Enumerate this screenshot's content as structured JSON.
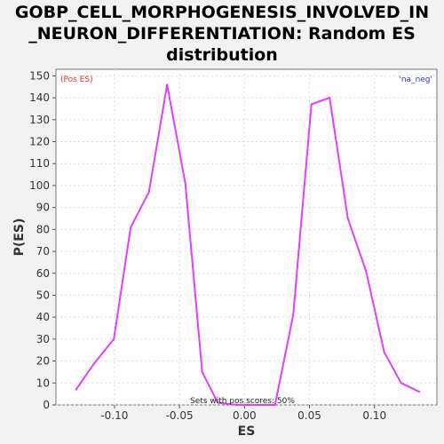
{
  "chart_data": {
    "type": "line",
    "title_lines": [
      "GOBP_CELL_MORPHOGENESIS_INVOLVED_IN",
      "_NEURON_DIFFERENTIATION: Random ES",
      "distribution"
    ],
    "xlabel": "ES",
    "ylabel": "P(ES)",
    "xlim": [
      -0.145,
      0.148
    ],
    "ylim": [
      0,
      153
    ],
    "x_ticks": [
      -0.1,
      -0.05,
      0.0,
      0.05,
      0.1
    ],
    "x_tick_labels": [
      "-0.10",
      "-0.05",
      "0.00",
      "0.05",
      "0.10"
    ],
    "y_ticks": [
      0,
      10,
      20,
      30,
      40,
      50,
      60,
      70,
      80,
      90,
      100,
      110,
      120,
      130,
      140,
      150
    ],
    "y_tick_labels": [
      "0",
      "10",
      "20",
      "30",
      "40",
      "50",
      "60",
      "70",
      "80",
      "90",
      "100",
      "110",
      "120",
      "130",
      "140",
      "150"
    ],
    "grid": true,
    "series": [
      {
        "color": "#e040fb",
        "x": [
          -0.1295,
          -0.1155,
          -0.1005,
          -0.0875,
          -0.0735,
          -0.0595,
          -0.0455,
          -0.0325,
          -0.0205,
          -0.0055,
          0.0095,
          0.0235,
          0.0375,
          0.0515,
          0.0655,
          0.0795,
          0.0935,
          0.1075,
          0.1205,
          0.1345
        ],
        "y": [
          7,
          19,
          30,
          81,
          97,
          146,
          101,
          15,
          1,
          0,
          0,
          0,
          41,
          137,
          140,
          85,
          61,
          24,
          10,
          6
        ]
      }
    ],
    "annotations": {
      "left": "(Pos ES)",
      "right": "'na_neg'",
      "bottom": "Sets with pos scores: 50%"
    },
    "colors": {
      "left_annotation": "#e03030",
      "right_annotation": "#3030c0",
      "grid": "#dddddd"
    }
  }
}
